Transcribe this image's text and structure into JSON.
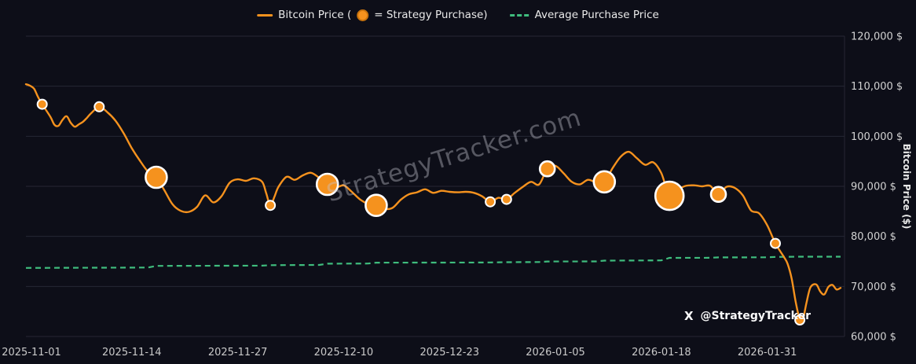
{
  "legend": {
    "bitcoin_pre": "Bitcoin Price (",
    "bitcoin_post": "= Strategy Purchase)",
    "avg": "Average Purchase Price"
  },
  "watermark": "StrategyTracker.com",
  "footer": {
    "x_logo": "X",
    "handle": "@StrategyTracker"
  },
  "chart_data": {
    "type": "line",
    "title": "",
    "background": "#0d0e18",
    "grid_color": "#262734",
    "line_color": "#f5921e",
    "marker_color": "#f5921e",
    "avg_color": "#3fbc7d",
    "purchase_size_radius": {
      "s": 6,
      "m": 9.5,
      "l": 13.5,
      "xl": 18
    },
    "y_axis": {
      "title": "Bitcoin Price ($)",
      "min": 60000,
      "max": 120000,
      "step": 10000,
      "ticks": [
        {
          "value": 120000,
          "label": "120,000 $"
        },
        {
          "value": 110000,
          "label": "110,000 $"
        },
        {
          "value": 100000,
          "label": "100,000 $"
        },
        {
          "value": 90000,
          "label": "90,000 $"
        },
        {
          "value": 80000,
          "label": "80,000 $"
        },
        {
          "value": 70000,
          "label": "70,000 $"
        },
        {
          "value": 60000,
          "label": "60,000 $"
        }
      ]
    },
    "x_axis": {
      "start_date": "2025-11-01",
      "total_days": 100,
      "ticks": [
        {
          "day": 0,
          "label": "2025-11-01"
        },
        {
          "day": 13,
          "label": "2025-11-14"
        },
        {
          "day": 26,
          "label": "2025-11-27"
        },
        {
          "day": 39,
          "label": "2025-12-10"
        },
        {
          "day": 52,
          "label": "2025-12-23"
        },
        {
          "day": 65,
          "label": "2026-01-05"
        },
        {
          "day": 78,
          "label": "2026-01-18"
        },
        {
          "day": 91,
          "label": "2026-01-31"
        }
      ]
    },
    "series": [
      {
        "name": "Bitcoin Price",
        "style": "solid",
        "points": [
          [
            0,
            110400
          ],
          [
            0.5,
            110100
          ],
          [
            1,
            109500
          ],
          [
            1.5,
            107800
          ],
          [
            2,
            106400
          ],
          [
            3,
            103900
          ],
          [
            3.5,
            102300
          ],
          [
            4,
            102100
          ],
          [
            4.5,
            103300
          ],
          [
            5,
            104000
          ],
          [
            5.5,
            102700
          ],
          [
            6,
            101900
          ],
          [
            6.5,
            102400
          ],
          [
            7,
            102900
          ],
          [
            7.5,
            103700
          ],
          [
            8,
            104600
          ],
          [
            9,
            105900
          ],
          [
            10,
            104800
          ],
          [
            11,
            103100
          ],
          [
            12,
            100600
          ],
          [
            13,
            97600
          ],
          [
            14,
            95100
          ],
          [
            15,
            92900
          ],
          [
            16,
            91800
          ],
          [
            17,
            89200
          ],
          [
            18,
            86400
          ],
          [
            19,
            85100
          ],
          [
            20,
            84900
          ],
          [
            21,
            85900
          ],
          [
            22,
            88200
          ],
          [
            23,
            86800
          ],
          [
            24,
            88000
          ],
          [
            25,
            90700
          ],
          [
            26,
            91400
          ],
          [
            27,
            91100
          ],
          [
            28,
            91600
          ],
          [
            29,
            90900
          ],
          [
            29.5,
            88600
          ],
          [
            30,
            86200
          ],
          [
            30.5,
            87900
          ],
          [
            31,
            89900
          ],
          [
            32,
            91900
          ],
          [
            33,
            91300
          ],
          [
            34,
            92200
          ],
          [
            35,
            92700
          ],
          [
            36,
            91700
          ],
          [
            37,
            90400
          ],
          [
            38,
            89700
          ],
          [
            39,
            90200
          ],
          [
            40,
            88900
          ],
          [
            41,
            87400
          ],
          [
            42,
            86500
          ],
          [
            43,
            86200
          ],
          [
            44,
            85500
          ],
          [
            45,
            85700
          ],
          [
            46,
            87300
          ],
          [
            47,
            88400
          ],
          [
            48,
            88800
          ],
          [
            49,
            89400
          ],
          [
            50,
            88700
          ],
          [
            51,
            89100
          ],
          [
            52,
            88900
          ],
          [
            53,
            88800
          ],
          [
            54,
            88900
          ],
          [
            55,
            88700
          ],
          [
            56,
            88000
          ],
          [
            57,
            86900
          ],
          [
            58,
            87700
          ],
          [
            59,
            87400
          ],
          [
            60,
            88700
          ],
          [
            61,
            89900
          ],
          [
            62,
            90900
          ],
          [
            63,
            90400
          ],
          [
            64,
            93500
          ],
          [
            65,
            94100
          ],
          [
            66,
            92600
          ],
          [
            67,
            90900
          ],
          [
            68,
            90400
          ],
          [
            69,
            91300
          ],
          [
            70,
            90800
          ],
          [
            71,
            90900
          ],
          [
            72,
            93600
          ],
          [
            73,
            95900
          ],
          [
            74,
            96900
          ],
          [
            75,
            95600
          ],
          [
            76,
            94300
          ],
          [
            77,
            94800
          ],
          [
            78,
            92600
          ],
          [
            79,
            88100
          ],
          [
            80,
            89300
          ],
          [
            81,
            90100
          ],
          [
            82,
            90200
          ],
          [
            83,
            90000
          ],
          [
            84,
            90100
          ],
          [
            85,
            88400
          ],
          [
            86,
            89900
          ],
          [
            87,
            89700
          ],
          [
            88,
            88200
          ],
          [
            89,
            85200
          ],
          [
            90,
            84600
          ],
          [
            91,
            82200
          ],
          [
            92,
            78600
          ],
          [
            93,
            76000
          ],
          [
            93.5,
            74500
          ],
          [
            94,
            71500
          ],
          [
            94.5,
            66800
          ],
          [
            95,
            63300
          ],
          [
            95.3,
            62700
          ],
          [
            95.8,
            66600
          ],
          [
            96.3,
            69800
          ],
          [
            97,
            70400
          ],
          [
            97.5,
            69000
          ],
          [
            98,
            68400
          ],
          [
            98.5,
            69900
          ],
          [
            99,
            70300
          ],
          [
            99.5,
            69400
          ],
          [
            100,
            69700
          ]
        ]
      },
      {
        "name": "Average Purchase Price",
        "style": "dashed",
        "points": [
          [
            0,
            73700
          ],
          [
            9,
            73750
          ],
          [
            15,
            73780
          ],
          [
            16,
            74100
          ],
          [
            29,
            74150
          ],
          [
            30,
            74250
          ],
          [
            36,
            74300
          ],
          [
            37,
            74550
          ],
          [
            42,
            74570
          ],
          [
            43,
            74750
          ],
          [
            56,
            74780
          ],
          [
            57,
            74800
          ],
          [
            59,
            74850
          ],
          [
            63,
            74880
          ],
          [
            64,
            74980
          ],
          [
            70,
            75000
          ],
          [
            71,
            75150
          ],
          [
            78,
            75200
          ],
          [
            79,
            75700
          ],
          [
            84,
            75720
          ],
          [
            85,
            75800
          ],
          [
            91,
            75820
          ],
          [
            92,
            75900
          ],
          [
            95,
            75950
          ],
          [
            100,
            75950
          ]
        ]
      }
    ],
    "purchases": [
      {
        "day": 2,
        "price": 106400,
        "size": "s"
      },
      {
        "day": 9,
        "price": 105900,
        "size": "s"
      },
      {
        "day": 16,
        "price": 91800,
        "size": "l"
      },
      {
        "day": 30,
        "price": 86200,
        "size": "s"
      },
      {
        "day": 37,
        "price": 90400,
        "size": "l"
      },
      {
        "day": 43,
        "price": 86200,
        "size": "l"
      },
      {
        "day": 57,
        "price": 86900,
        "size": "s"
      },
      {
        "day": 59,
        "price": 87400,
        "size": "s"
      },
      {
        "day": 64,
        "price": 93500,
        "size": "m"
      },
      {
        "day": 71,
        "price": 90900,
        "size": "l"
      },
      {
        "day": 79,
        "price": 88100,
        "size": "xl"
      },
      {
        "day": 85,
        "price": 88400,
        "size": "m"
      },
      {
        "day": 92,
        "price": 78600,
        "size": "s"
      },
      {
        "day": 95,
        "price": 63300,
        "size": "s"
      }
    ]
  }
}
